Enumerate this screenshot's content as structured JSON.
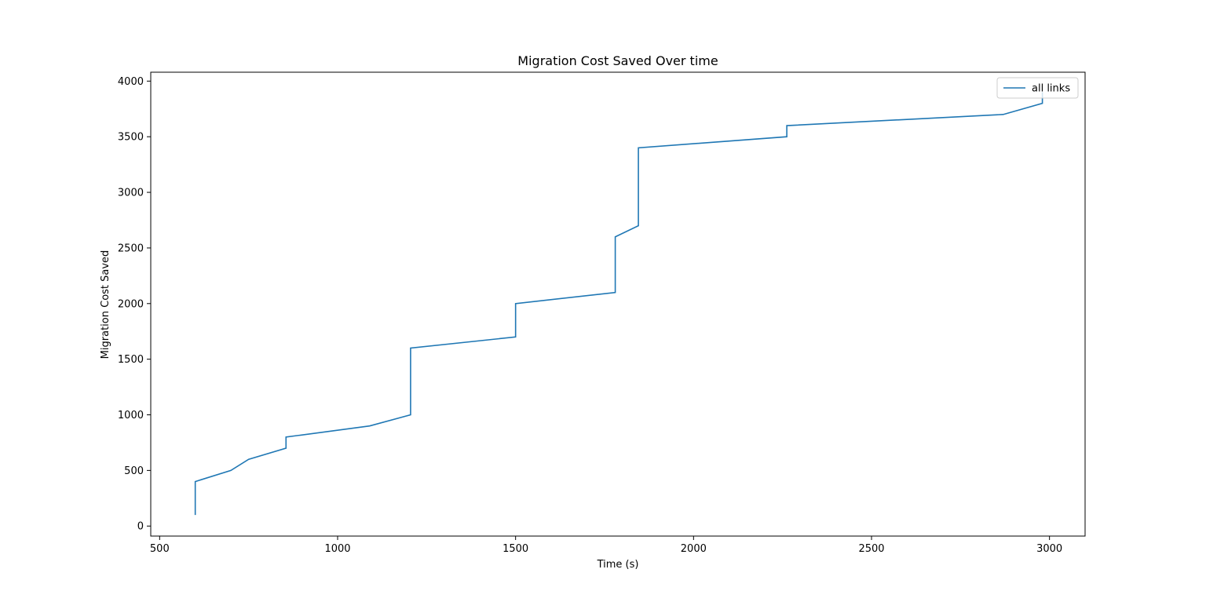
{
  "chart_data": {
    "type": "line",
    "title": "Migration Cost Saved Over time",
    "xlabel": "Time (s)",
    "ylabel": "Migration Cost Saved",
    "xlim": [
      475,
      3100
    ],
    "ylim": [
      -90,
      4080
    ],
    "x_ticks": [
      500,
      1000,
      1500,
      2000,
      2500,
      3000
    ],
    "x_tick_labels": [
      "500",
      "1000",
      "1500",
      "2000",
      "2500",
      "3000"
    ],
    "y_ticks": [
      0,
      500,
      1000,
      1500,
      2000,
      2500,
      3000,
      3500,
      4000
    ],
    "y_tick_labels": [
      "0",
      "500",
      "1000",
      "1500",
      "2000",
      "2500",
      "3000",
      "3500",
      "4000"
    ],
    "grid": false,
    "legend_position": "top-right",
    "series": [
      {
        "name": "all links",
        "color": "#1f77b4",
        "x": [
          600,
          600,
          700,
          750,
          855,
          855,
          1090,
          1205,
          1205,
          1500,
          1500,
          1780,
          1780,
          1845,
          1845,
          2262,
          2262,
          2870,
          2980,
          2980
        ],
        "y": [
          100,
          400,
          500,
          600,
          700,
          800,
          900,
          1000,
          1600,
          1700,
          2000,
          2100,
          2600,
          2700,
          3400,
          3500,
          3600,
          3700,
          3800,
          3900
        ]
      }
    ]
  }
}
